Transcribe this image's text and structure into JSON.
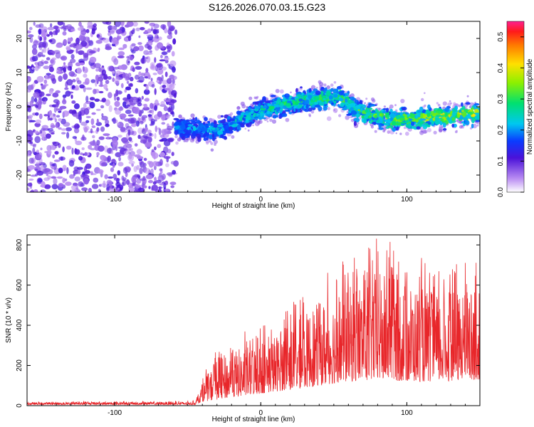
{
  "title": "S126.2026.070.03.15.G23",
  "colors": {
    "scatter_base": "#6a1ad6",
    "snr_line": "#e8262a",
    "frame": "#000000"
  },
  "chart_data": [
    {
      "type": "heatmap",
      "xlabel": "Height of straight line (km)",
      "ylabel": "Frequency (Hz)",
      "xlim": [
        -160,
        150
      ],
      "ylim": [
        -25,
        25
      ],
      "xticks": [
        -100,
        0,
        100
      ],
      "yticks": [
        -20,
        -10,
        0,
        10,
        20
      ],
      "grid": false,
      "colorbar": {
        "label": "Normalized spectral amplitude",
        "range": [
          0,
          0.55
        ],
        "ticks": [
          0.0,
          0.1,
          0.2,
          0.3,
          0.4,
          0.5
        ],
        "colormap": "rainbow"
      },
      "band_center_hz": [
        {
          "x": -60,
          "y": -6
        },
        {
          "x": -30,
          "y": -7
        },
        {
          "x": 0,
          "y": -1
        },
        {
          "x": 30,
          "y": 2
        },
        {
          "x": 55,
          "y": 3
        },
        {
          "x": 65,
          "y": -1
        },
        {
          "x": 90,
          "y": -4
        },
        {
          "x": 120,
          "y": -3
        },
        {
          "x": 150,
          "y": -2
        }
      ],
      "noise_region_x": [
        -160,
        -58
      ]
    },
    {
      "type": "line",
      "xlabel": "Height of straight line (km)",
      "ylabel": "SNR (10 * v/v)",
      "xlim": [
        -160,
        150
      ],
      "ylim": [
        0,
        850
      ],
      "xticks": [
        -100,
        0,
        100
      ],
      "yticks": [
        0,
        200,
        400,
        600,
        800
      ],
      "grid": false,
      "series": [
        {
          "envelope": [
            {
              "x": -160,
              "base": 5,
              "peak": 20
            },
            {
              "x": -45,
              "base": 5,
              "peak": 25
            },
            {
              "x": -40,
              "base": 20,
              "peak": 140
            },
            {
              "x": -30,
              "base": 30,
              "peak": 300
            },
            {
              "x": -20,
              "base": 40,
              "peak": 350
            },
            {
              "x": 0,
              "base": 60,
              "peak": 400
            },
            {
              "x": 20,
              "base": 80,
              "peak": 500
            },
            {
              "x": 40,
              "base": 100,
              "peak": 650
            },
            {
              "x": 60,
              "base": 120,
              "peak": 750
            },
            {
              "x": 80,
              "base": 130,
              "peak": 850
            },
            {
              "x": 100,
              "base": 120,
              "peak": 780
            },
            {
              "x": 120,
              "base": 120,
              "peak": 700
            },
            {
              "x": 150,
              "base": 130,
              "peak": 720
            }
          ]
        }
      ]
    }
  ]
}
